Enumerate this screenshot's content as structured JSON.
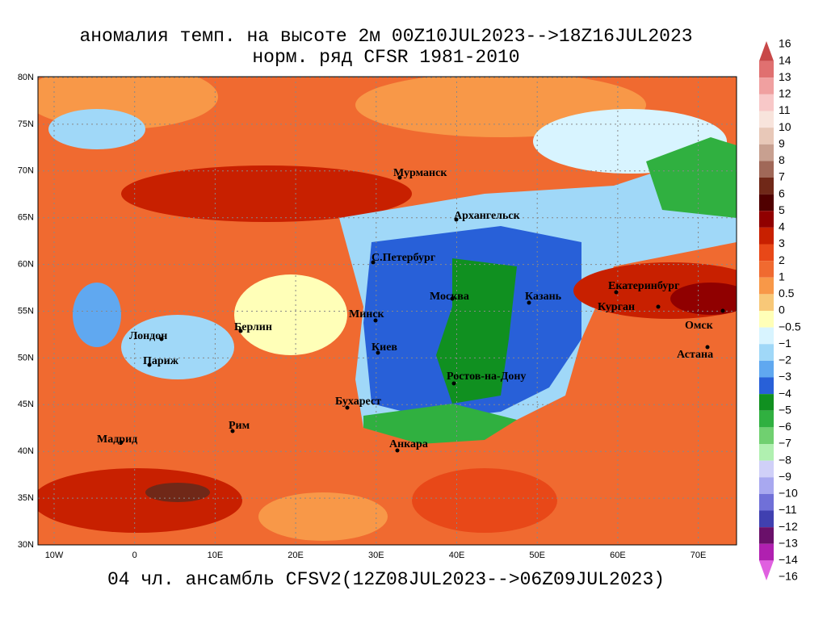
{
  "title": [
    "аномалия темп. на высоте 2м 00Z10JUL2023-->18Z16JUL2023",
    "норм. ряд CFSR 1981-2010"
  ],
  "footer": "04 чл. ансамбль CFSV2(12Z08JUL2023-->06Z09JUL2023)",
  "lat_labels": [
    "80N",
    "75N",
    "70N",
    "65N",
    "60N",
    "55N",
    "50N",
    "45N",
    "40N",
    "35N",
    "30N"
  ],
  "lon_labels": [
    "10W",
    "0",
    "10E",
    "20E",
    "30E",
    "40E",
    "50E",
    "60E",
    "70E"
  ],
  "cities": [
    "Мурманск",
    "Архангельск",
    "С.Петербург",
    "Москва",
    "Казань",
    "Екатеринбург",
    "Курган",
    "Омск",
    "Астана",
    "Минск",
    "Берлин",
    "Лондон",
    "Париж",
    "Киев",
    "Ростов-на-Дону",
    "Бухарест",
    "Рим",
    "Мадрид",
    "Анкара"
  ],
  "colorbar": {
    "labels": [
      "16",
      "14",
      "13",
      "12",
      "11",
      "10",
      "9",
      "8",
      "7",
      "6",
      "5",
      "4",
      "3",
      "2",
      "1",
      "0.5",
      "0",
      "−0.5",
      "−1",
      "−2",
      "−3",
      "−4",
      "−5",
      "−6",
      "−7",
      "−8",
      "−9",
      "−10",
      "−11",
      "−12",
      "−13",
      "−14",
      "−16"
    ],
    "colors": [
      "#c84848",
      "#e07070",
      "#f0a0a0",
      "#f8c8c8",
      "#f8e4dc",
      "#e8c8b8",
      "#c8a090",
      "#a06858",
      "#702818",
      "#500000",
      "#900000",
      "#c82000",
      "#e84818",
      "#f06a30",
      "#f89848",
      "#f8c878",
      "#ffffb8",
      "#d8f4ff",
      "#a0d8f8",
      "#60a8f0",
      "#2860d8",
      "#109020",
      "#30b040",
      "#70d070",
      "#b0f0b0",
      "#d0d0f8",
      "#a8a8f0",
      "#7070d8",
      "#4040b0",
      "#6a106a",
      "#b020b0",
      "#e060e0"
    ]
  }
}
